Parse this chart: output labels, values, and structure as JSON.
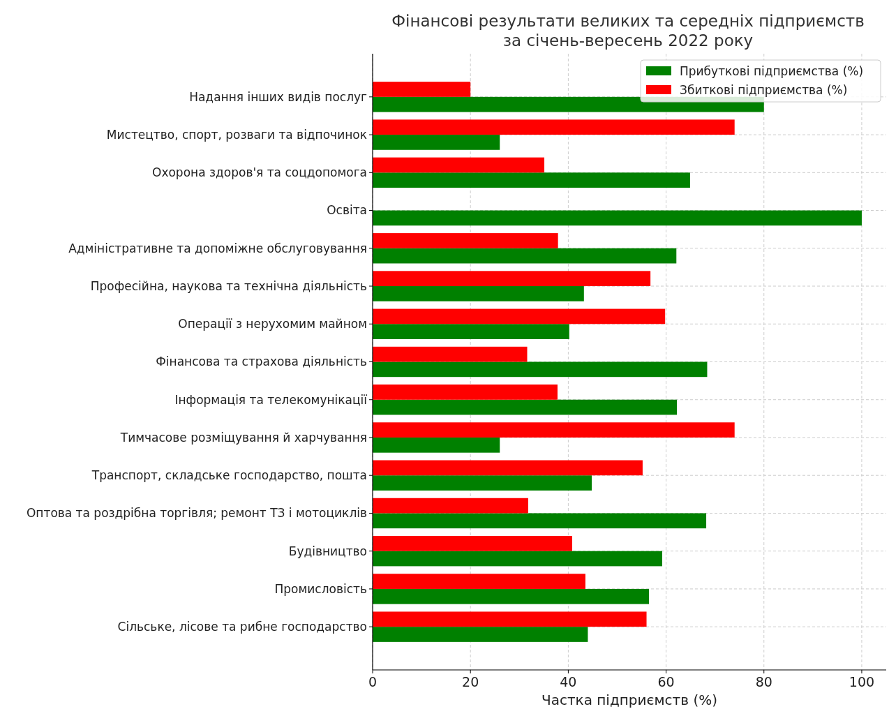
{
  "chart_data": {
    "type": "bar",
    "orientation": "horizontal",
    "title": "Фінансові результати великих та середніх підприємств\nза січень-вересень 2022 року",
    "xlabel": "Частка підприємств (%)",
    "categories": [
      "Надання інших видів послуг",
      "Мистецтво, спорт, розваги та відпочинок",
      "Охорона здоров'я та соцдопомога",
      "Освіта",
      "Адміністративне та допоміжне обслуговування",
      "Професійна, наукова та технічна діяльність",
      "Операції з нерухомим майном",
      "Фінансова та страхова діяльність",
      "Інформація та телекомунікації",
      "Тимчасове розміщування й харчування",
      "Транспорт, складське господарство, пошта",
      "Оптова та роздрібна торгівля; ремонт ТЗ і мотоциклів",
      "Будівництво",
      "Промисловість",
      "Сільське, лісове та рибне господарство"
    ],
    "series": [
      {
        "name": "Прибуткові підприємства (%)",
        "color": "#008000",
        "values": [
          80,
          26,
          64.9,
          100,
          62.1,
          43.2,
          40.2,
          68.4,
          62.2,
          26,
          44.8,
          68.2,
          59.2,
          56.5,
          44
        ]
      },
      {
        "name": "Збиткові підприємства (%)",
        "color": "#ff0000",
        "values": [
          20,
          74,
          35.1,
          0,
          37.9,
          56.8,
          59.8,
          31.6,
          37.8,
          74,
          55.2,
          31.8,
          40.8,
          43.5,
          56
        ]
      }
    ],
    "xlim": [
      0,
      105
    ],
    "xticks": [
      0,
      20,
      40,
      60,
      80,
      100
    ],
    "grid": true,
    "legend": "top right"
  }
}
